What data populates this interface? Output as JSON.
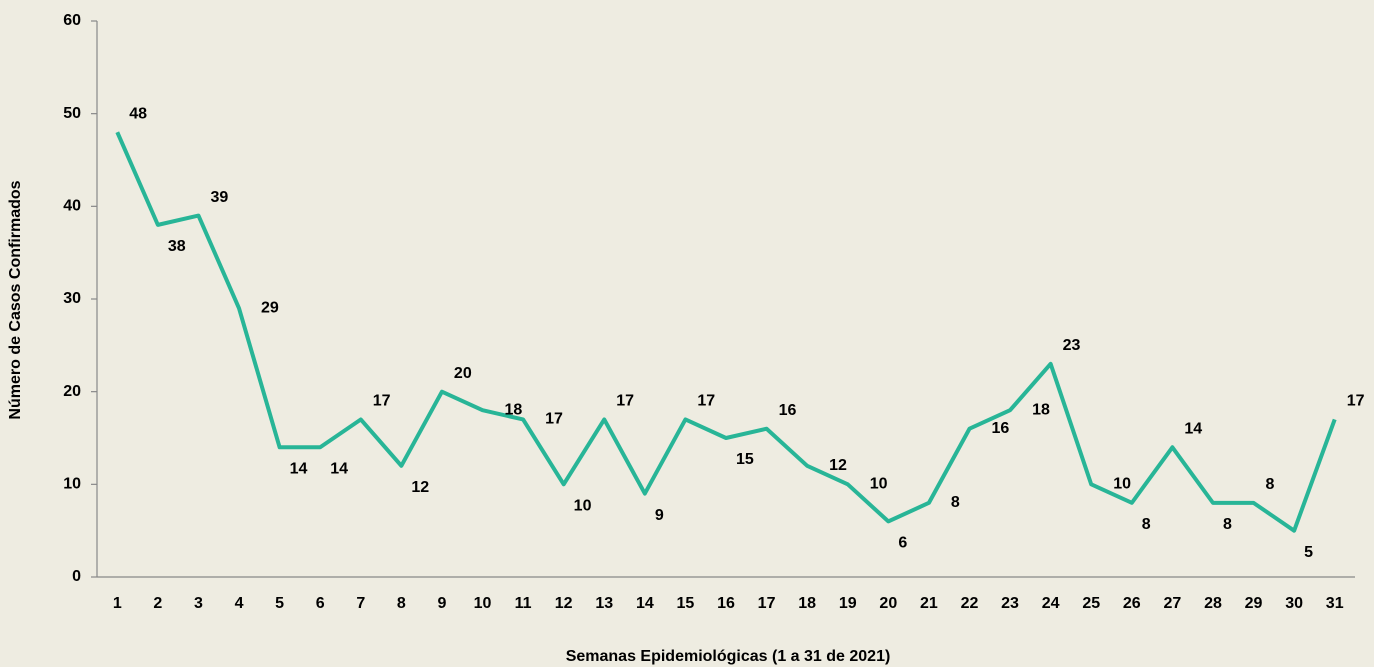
{
  "chart_data": {
    "type": "line",
    "x_label": "Semanas Epidemiológicas (1 a 31 de 2021)",
    "y_label": "Número de Casos Confirmados",
    "categories": [
      "1",
      "2",
      "3",
      "4",
      "5",
      "6",
      "7",
      "8",
      "9",
      "10",
      "11",
      "12",
      "13",
      "14",
      "15",
      "16",
      "17",
      "18",
      "19",
      "20",
      "21",
      "22",
      "23",
      "24",
      "25",
      "26",
      "27",
      "28",
      "29",
      "30",
      "31"
    ],
    "values": [
      48,
      38,
      39,
      29,
      14,
      14,
      17,
      12,
      20,
      18,
      17,
      10,
      17,
      9,
      17,
      15,
      16,
      12,
      10,
      6,
      8,
      16,
      18,
      23,
      10,
      8,
      14,
      8,
      8,
      5,
      17
    ],
    "color": "#28b597",
    "ylim": [
      0,
      60
    ],
    "yticks": [
      0,
      10,
      20,
      30,
      40,
      50,
      60
    ],
    "grid": false
  }
}
